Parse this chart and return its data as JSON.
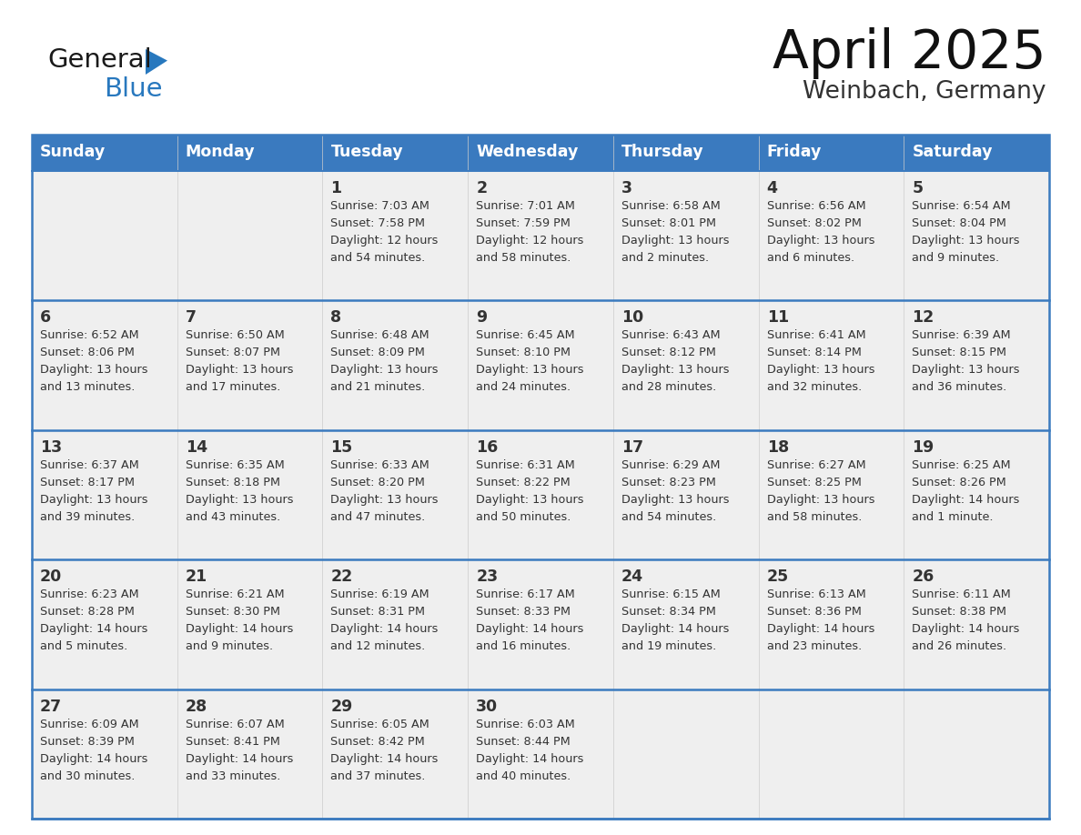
{
  "title": "April 2025",
  "subtitle": "Weinbach, Germany",
  "header_color": "#3a7abf",
  "header_text_color": "#ffffff",
  "cell_bg_color": "#efefef",
  "border_color": "#3a7abf",
  "text_color": "#333333",
  "days_of_week": [
    "Sunday",
    "Monday",
    "Tuesday",
    "Wednesday",
    "Thursday",
    "Friday",
    "Saturday"
  ],
  "weeks": [
    [
      {
        "day": "",
        "sunrise": "",
        "sunset": "",
        "daylight": ""
      },
      {
        "day": "",
        "sunrise": "",
        "sunset": "",
        "daylight": ""
      },
      {
        "day": "1",
        "sunrise": "Sunrise: 7:03 AM",
        "sunset": "Sunset: 7:58 PM",
        "daylight": "Daylight: 12 hours\nand 54 minutes."
      },
      {
        "day": "2",
        "sunrise": "Sunrise: 7:01 AM",
        "sunset": "Sunset: 7:59 PM",
        "daylight": "Daylight: 12 hours\nand 58 minutes."
      },
      {
        "day": "3",
        "sunrise": "Sunrise: 6:58 AM",
        "sunset": "Sunset: 8:01 PM",
        "daylight": "Daylight: 13 hours\nand 2 minutes."
      },
      {
        "day": "4",
        "sunrise": "Sunrise: 6:56 AM",
        "sunset": "Sunset: 8:02 PM",
        "daylight": "Daylight: 13 hours\nand 6 minutes."
      },
      {
        "day": "5",
        "sunrise": "Sunrise: 6:54 AM",
        "sunset": "Sunset: 8:04 PM",
        "daylight": "Daylight: 13 hours\nand 9 minutes."
      }
    ],
    [
      {
        "day": "6",
        "sunrise": "Sunrise: 6:52 AM",
        "sunset": "Sunset: 8:06 PM",
        "daylight": "Daylight: 13 hours\nand 13 minutes."
      },
      {
        "day": "7",
        "sunrise": "Sunrise: 6:50 AM",
        "sunset": "Sunset: 8:07 PM",
        "daylight": "Daylight: 13 hours\nand 17 minutes."
      },
      {
        "day": "8",
        "sunrise": "Sunrise: 6:48 AM",
        "sunset": "Sunset: 8:09 PM",
        "daylight": "Daylight: 13 hours\nand 21 minutes."
      },
      {
        "day": "9",
        "sunrise": "Sunrise: 6:45 AM",
        "sunset": "Sunset: 8:10 PM",
        "daylight": "Daylight: 13 hours\nand 24 minutes."
      },
      {
        "day": "10",
        "sunrise": "Sunrise: 6:43 AM",
        "sunset": "Sunset: 8:12 PM",
        "daylight": "Daylight: 13 hours\nand 28 minutes."
      },
      {
        "day": "11",
        "sunrise": "Sunrise: 6:41 AM",
        "sunset": "Sunset: 8:14 PM",
        "daylight": "Daylight: 13 hours\nand 32 minutes."
      },
      {
        "day": "12",
        "sunrise": "Sunrise: 6:39 AM",
        "sunset": "Sunset: 8:15 PM",
        "daylight": "Daylight: 13 hours\nand 36 minutes."
      }
    ],
    [
      {
        "day": "13",
        "sunrise": "Sunrise: 6:37 AM",
        "sunset": "Sunset: 8:17 PM",
        "daylight": "Daylight: 13 hours\nand 39 minutes."
      },
      {
        "day": "14",
        "sunrise": "Sunrise: 6:35 AM",
        "sunset": "Sunset: 8:18 PM",
        "daylight": "Daylight: 13 hours\nand 43 minutes."
      },
      {
        "day": "15",
        "sunrise": "Sunrise: 6:33 AM",
        "sunset": "Sunset: 8:20 PM",
        "daylight": "Daylight: 13 hours\nand 47 minutes."
      },
      {
        "day": "16",
        "sunrise": "Sunrise: 6:31 AM",
        "sunset": "Sunset: 8:22 PM",
        "daylight": "Daylight: 13 hours\nand 50 minutes."
      },
      {
        "day": "17",
        "sunrise": "Sunrise: 6:29 AM",
        "sunset": "Sunset: 8:23 PM",
        "daylight": "Daylight: 13 hours\nand 54 minutes."
      },
      {
        "day": "18",
        "sunrise": "Sunrise: 6:27 AM",
        "sunset": "Sunset: 8:25 PM",
        "daylight": "Daylight: 13 hours\nand 58 minutes."
      },
      {
        "day": "19",
        "sunrise": "Sunrise: 6:25 AM",
        "sunset": "Sunset: 8:26 PM",
        "daylight": "Daylight: 14 hours\nand 1 minute."
      }
    ],
    [
      {
        "day": "20",
        "sunrise": "Sunrise: 6:23 AM",
        "sunset": "Sunset: 8:28 PM",
        "daylight": "Daylight: 14 hours\nand 5 minutes."
      },
      {
        "day": "21",
        "sunrise": "Sunrise: 6:21 AM",
        "sunset": "Sunset: 8:30 PM",
        "daylight": "Daylight: 14 hours\nand 9 minutes."
      },
      {
        "day": "22",
        "sunrise": "Sunrise: 6:19 AM",
        "sunset": "Sunset: 8:31 PM",
        "daylight": "Daylight: 14 hours\nand 12 minutes."
      },
      {
        "day": "23",
        "sunrise": "Sunrise: 6:17 AM",
        "sunset": "Sunset: 8:33 PM",
        "daylight": "Daylight: 14 hours\nand 16 minutes."
      },
      {
        "day": "24",
        "sunrise": "Sunrise: 6:15 AM",
        "sunset": "Sunset: 8:34 PM",
        "daylight": "Daylight: 14 hours\nand 19 minutes."
      },
      {
        "day": "25",
        "sunrise": "Sunrise: 6:13 AM",
        "sunset": "Sunset: 8:36 PM",
        "daylight": "Daylight: 14 hours\nand 23 minutes."
      },
      {
        "day": "26",
        "sunrise": "Sunrise: 6:11 AM",
        "sunset": "Sunset: 8:38 PM",
        "daylight": "Daylight: 14 hours\nand 26 minutes."
      }
    ],
    [
      {
        "day": "27",
        "sunrise": "Sunrise: 6:09 AM",
        "sunset": "Sunset: 8:39 PM",
        "daylight": "Daylight: 14 hours\nand 30 minutes."
      },
      {
        "day": "28",
        "sunrise": "Sunrise: 6:07 AM",
        "sunset": "Sunset: 8:41 PM",
        "daylight": "Daylight: 14 hours\nand 33 minutes."
      },
      {
        "day": "29",
        "sunrise": "Sunrise: 6:05 AM",
        "sunset": "Sunset: 8:42 PM",
        "daylight": "Daylight: 14 hours\nand 37 minutes."
      },
      {
        "day": "30",
        "sunrise": "Sunrise: 6:03 AM",
        "sunset": "Sunset: 8:44 PM",
        "daylight": "Daylight: 14 hours\nand 40 minutes."
      },
      {
        "day": "",
        "sunrise": "",
        "sunset": "",
        "daylight": ""
      },
      {
        "day": "",
        "sunrise": "",
        "sunset": "",
        "daylight": ""
      },
      {
        "day": "",
        "sunrise": "",
        "sunset": "",
        "daylight": ""
      }
    ]
  ],
  "logo_color_general": "#1a1a1a",
  "logo_color_blue": "#2878be",
  "logo_triangle_color": "#2878be",
  "fig_width": 11.88,
  "fig_height": 9.18,
  "dpi": 100
}
